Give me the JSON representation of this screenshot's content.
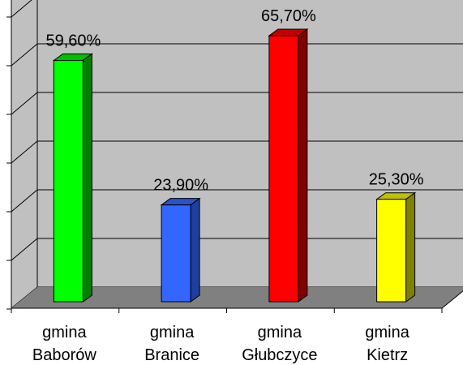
{
  "chart_data": {
    "type": "bar",
    "categories": [
      "gmina Baborów",
      "gmina Branice",
      "gmina Głubczyce",
      "gmina Kietrz"
    ],
    "category_lines": [
      [
        "gmina",
        "Baborów"
      ],
      [
        "gmina",
        "Branice"
      ],
      [
        "gmina",
        "Głubczyce"
      ],
      [
        "gmina",
        "Kietrz"
      ]
    ],
    "values": [
      59.6,
      23.9,
      65.7,
      25.3
    ],
    "data_labels": [
      "59,60%",
      "23,90%",
      "65,70%",
      "25,30%"
    ],
    "bar_colors": [
      {
        "front": "#00ff00",
        "side": "#008000",
        "top": "#00c000"
      },
      {
        "front": "#3366ff",
        "side": "#1f3fa0",
        "top": "#2a52cc"
      },
      {
        "front": "#ff0000",
        "side": "#800000",
        "top": "#c00000"
      },
      {
        "front": "#ffff00",
        "side": "#808000",
        "top": "#c0c000"
      }
    ],
    "wall_color": "#c0c0c0",
    "floor_color": "#808080",
    "ylim": [
      0,
      70
    ],
    "grid": true,
    "y_tick_labels_shown": false,
    "title": "",
    "xlabel": "",
    "ylabel": "",
    "legend": "none"
  }
}
